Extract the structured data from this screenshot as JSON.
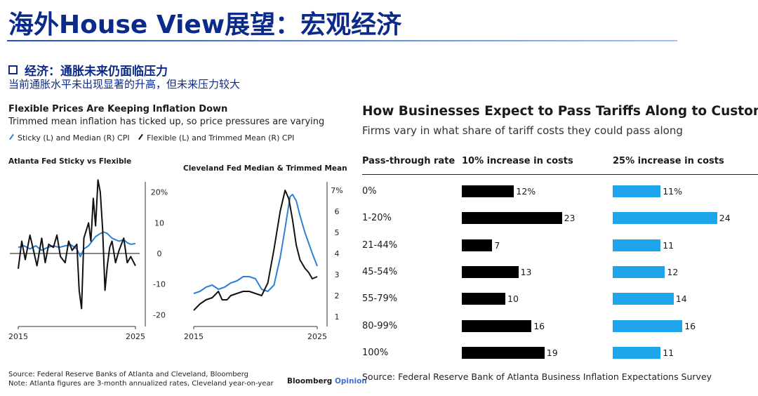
{
  "slide": {
    "title": "海外House View展望：宏观经济",
    "section_heading": "经济：通胀未来仍面临压力",
    "section_subheading": "当前通胀水平未出现显著的升高，但未来压力较大"
  },
  "left_chart": {
    "title": "Flexible Prices Are Keeping Inflation Down",
    "subtitle": "Trimmed mean inflation has ticked up, so price pressures are varying",
    "legend": [
      {
        "label": "Sticky (L) and Median (R) CPI",
        "color": "#2f7fd6"
      },
      {
        "label": "Flexible (L) and Trimmed Mean (R) CPI",
        "color": "#111111"
      }
    ],
    "source": "Source: Federal Reserve Banks of Atlanta and Cleveland, Bloomberg",
    "note": "Note: Atlanta figures are 3-month annualized rates, Cleveland year-on-year",
    "brand": "Bloomberg",
    "brand_suffix": "Opinion"
  },
  "right_chart": {
    "title": "How Businesses Expect to Pass Tariffs Along to Customers",
    "subtitle": "Firms vary in what share of tariff costs they could pass along",
    "col_rate": "Pass-through rate",
    "col_10": "10% increase in costs",
    "col_25": "25% increase in costs",
    "source": "Source: Federal Reserve Bank of Atlanta Business Inflation Expectations Survey"
  },
  "chart_data": [
    {
      "type": "line",
      "title": "Atlanta Fed Sticky vs Flexible",
      "x_ticks": [
        "2015",
        "2025"
      ],
      "y_ticks": [
        "20%",
        "10",
        "0",
        "-10",
        "-20"
      ],
      "ylim": [
        -22,
        22
      ],
      "x_range": [
        2015,
        2025
      ],
      "series": [
        {
          "name": "Sticky",
          "color": "#2f7fd6",
          "x": [
            2015.0,
            2015.5,
            2016.0,
            2016.5,
            2017.0,
            2017.5,
            2018.0,
            2018.5,
            2019.0,
            2019.5,
            2020.0,
            2020.3,
            2020.6,
            2021.0,
            2021.3,
            2021.6,
            2022.0,
            2022.3,
            2022.6,
            2023.0,
            2023.3,
            2023.6,
            2024.0,
            2024.3,
            2024.6,
            2025.0
          ],
          "y": [
            2.0,
            2.5,
            1.5,
            2.5,
            1.0,
            2.0,
            2.5,
            2.0,
            2.5,
            2.8,
            1.5,
            -1.0,
            1.5,
            2.5,
            4.0,
            5.5,
            6.5,
            7.0,
            6.5,
            5.0,
            4.5,
            4.0,
            4.5,
            3.5,
            3.0,
            3.2
          ]
        },
        {
          "name": "Flexible",
          "color": "#111111",
          "x": [
            2015.0,
            2015.3,
            2015.6,
            2016.0,
            2016.3,
            2016.6,
            2017.0,
            2017.3,
            2017.6,
            2018.0,
            2018.3,
            2018.6,
            2019.0,
            2019.3,
            2019.6,
            2020.0,
            2020.2,
            2020.4,
            2020.6,
            2021.0,
            2021.2,
            2021.4,
            2021.6,
            2021.8,
            2022.0,
            2022.2,
            2022.4,
            2022.6,
            2022.8,
            2023.0,
            2023.3,
            2023.6,
            2024.0,
            2024.3,
            2024.6,
            2025.0
          ],
          "y": [
            -5.0,
            4.0,
            -2.0,
            6.0,
            1.0,
            -4.0,
            5.0,
            -3.0,
            3.0,
            2.0,
            6.0,
            -1.0,
            -3.0,
            4.0,
            1.0,
            3.0,
            -12.0,
            -18.0,
            5.0,
            10.0,
            4.0,
            18.0,
            9.0,
            24.0,
            20.0,
            8.0,
            -12.0,
            -4.0,
            2.0,
            4.0,
            -3.0,
            1.0,
            5.0,
            -3.0,
            -1.0,
            -4.0
          ]
        }
      ]
    },
    {
      "type": "line",
      "title": "Cleveland Fed Median & Trimmed Mean",
      "x_ticks": [
        "2015",
        "2025"
      ],
      "y_ticks": [
        "7%",
        "6",
        "5",
        "4",
        "3",
        "2",
        "1"
      ],
      "ylim": [
        0.8,
        7.2
      ],
      "x_range": [
        2015,
        2025
      ],
      "series": [
        {
          "name": "Median",
          "color": "#2f7fd6",
          "x": [
            2015.0,
            2015.5,
            2016.0,
            2016.5,
            2017.0,
            2017.5,
            2018.0,
            2018.5,
            2019.0,
            2019.5,
            2020.0,
            2020.5,
            2021.0,
            2021.5,
            2022.0,
            2022.4,
            2022.8,
            2023.0,
            2023.3,
            2023.6,
            2024.0,
            2024.3,
            2024.6,
            2025.0
          ],
          "y": [
            2.1,
            2.2,
            2.4,
            2.5,
            2.3,
            2.4,
            2.6,
            2.7,
            2.9,
            2.9,
            2.8,
            2.3,
            2.2,
            2.5,
            3.8,
            5.2,
            6.7,
            6.8,
            6.5,
            5.8,
            5.0,
            4.5,
            4.0,
            3.4
          ]
        },
        {
          "name": "Trimmed Mean",
          "color": "#111111",
          "x": [
            2015.0,
            2015.5,
            2016.0,
            2016.5,
            2017.0,
            2017.3,
            2017.7,
            2018.0,
            2018.5,
            2019.0,
            2019.5,
            2020.0,
            2020.5,
            2021.0,
            2021.5,
            2022.0,
            2022.4,
            2022.7,
            2023.0,
            2023.3,
            2023.6,
            2024.0,
            2024.3,
            2024.6,
            2025.0
          ],
          "y": [
            1.3,
            1.6,
            1.8,
            1.9,
            2.2,
            1.8,
            1.8,
            2.0,
            2.1,
            2.2,
            2.2,
            2.1,
            2.0,
            2.6,
            4.2,
            6.0,
            7.0,
            6.6,
            5.6,
            4.4,
            3.7,
            3.3,
            3.1,
            2.8,
            2.9
          ]
        }
      ]
    },
    {
      "type": "bar",
      "title": "How Businesses Expect to Pass Tariffs Along to Customers",
      "categories": [
        "0%",
        "1-20%",
        "21-44%",
        "45-54%",
        "55-79%",
        "80-99%",
        "100%"
      ],
      "series": [
        {
          "name": "10% increase in costs",
          "color": "#000000",
          "values": [
            12,
            23,
            7,
            13,
            10,
            16,
            19
          ],
          "labels": [
            "12%",
            "23",
            "7",
            "13",
            "10",
            "16",
            "19"
          ]
        },
        {
          "name": "25% increase in costs",
          "color": "#1ea4ea",
          "values": [
            11,
            24,
            11,
            12,
            14,
            16,
            11
          ],
          "labels": [
            "11%",
            "24",
            "11",
            "12",
            "14",
            "16",
            "11"
          ]
        }
      ]
    }
  ]
}
